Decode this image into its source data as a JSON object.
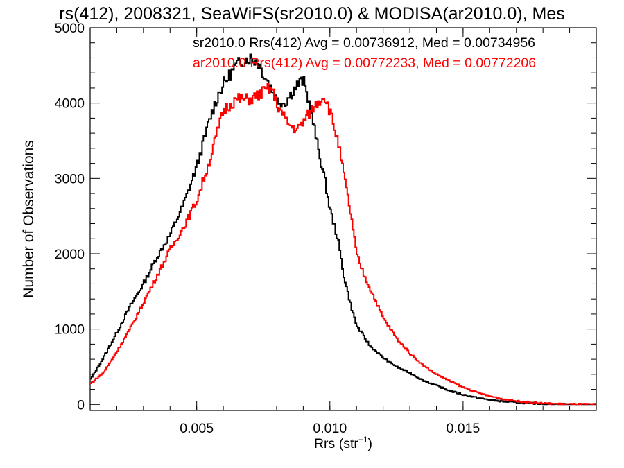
{
  "chart_data": {
    "type": "line",
    "title": "rs(412), 2008321, SeaWiFS(sr2010.0) & MODISA(ar2010.0), Mes",
    "xlabel_base": "Rrs (str",
    "xlabel_sup": "−1",
    "xlabel_end": ")",
    "ylabel": "Number of Observations",
    "xlim": [
      0.001,
      0.02
    ],
    "ylim": [
      -80,
      5000
    ],
    "xticks": [
      0.005,
      0.01,
      0.015
    ],
    "xtick_labels": [
      "0.005",
      "0.010",
      "0.015"
    ],
    "yticks": [
      0,
      1000,
      2000,
      3000,
      4000,
      5000
    ],
    "ytick_labels": [
      "0",
      "1000",
      "2000",
      "3000",
      "4000",
      "5000"
    ],
    "grid": false,
    "annotations": [
      {
        "text": "sr2010.0 Rrs(412) Avg = 0.00736912, Med = 0.00734956",
        "color": "#000000"
      },
      {
        "text": "ar2010.0 Rrs(412) Avg = 0.00772233, Med = 0.00772206",
        "color": "#ff0000"
      }
    ],
    "series": [
      {
        "color": "#000000",
        "x": [
          0.001,
          0.0015,
          0.002,
          0.0025,
          0.003,
          0.0035,
          0.004,
          0.0045,
          0.005,
          0.0055,
          0.0058,
          0.006,
          0.0063,
          0.0065,
          0.0068,
          0.007,
          0.0073,
          0.0075,
          0.0078,
          0.008,
          0.0083,
          0.0085,
          0.0088,
          0.009,
          0.0093,
          0.0095,
          0.0098,
          0.01,
          0.0103,
          0.0105,
          0.0108,
          0.011,
          0.0115,
          0.012,
          0.0125,
          0.013,
          0.0135,
          0.014,
          0.0145,
          0.015,
          0.0155,
          0.016,
          0.0165,
          0.017,
          0.0175,
          0.018,
          0.0185,
          0.019,
          0.0195,
          0.02
        ],
        "y": [
          320,
          620,
          950,
          1300,
          1600,
          1950,
          2250,
          2650,
          3150,
          3800,
          4100,
          4250,
          4400,
          4500,
          4580,
          4600,
          4550,
          4400,
          4200,
          4050,
          4000,
          4100,
          4250,
          4300,
          3900,
          3500,
          3000,
          2600,
          2200,
          1750,
          1300,
          1050,
          780,
          620,
          500,
          420,
          320,
          250,
          180,
          130,
          90,
          60,
          40,
          25,
          15,
          8,
          4,
          2,
          1,
          0
        ]
      },
      {
        "color": "#ff0000",
        "x": [
          0.001,
          0.0015,
          0.002,
          0.0025,
          0.003,
          0.0035,
          0.004,
          0.0045,
          0.005,
          0.0055,
          0.0058,
          0.006,
          0.0063,
          0.0065,
          0.0068,
          0.007,
          0.0073,
          0.0075,
          0.0078,
          0.008,
          0.0083,
          0.0085,
          0.0088,
          0.009,
          0.0093,
          0.0095,
          0.0098,
          0.01,
          0.0103,
          0.0105,
          0.0108,
          0.011,
          0.0113,
          0.0115,
          0.012,
          0.0125,
          0.013,
          0.0135,
          0.014,
          0.0145,
          0.015,
          0.0155,
          0.016,
          0.0165,
          0.017,
          0.0175,
          0.018,
          0.0185,
          0.019,
          0.0195,
          0.02
        ],
        "y": [
          270,
          420,
          700,
          1000,
          1350,
          1700,
          2050,
          2350,
          2700,
          3250,
          3650,
          3900,
          4000,
          4050,
          4050,
          4050,
          4100,
          4150,
          4200,
          4000,
          3800,
          3700,
          3650,
          3750,
          3900,
          4000,
          4100,
          3900,
          3500,
          3100,
          2500,
          2000,
          1700,
          1550,
          1150,
          880,
          680,
          520,
          400,
          310,
          230,
          160,
          110,
          70,
          45,
          28,
          15,
          8,
          4,
          2,
          0
        ]
      }
    ]
  }
}
